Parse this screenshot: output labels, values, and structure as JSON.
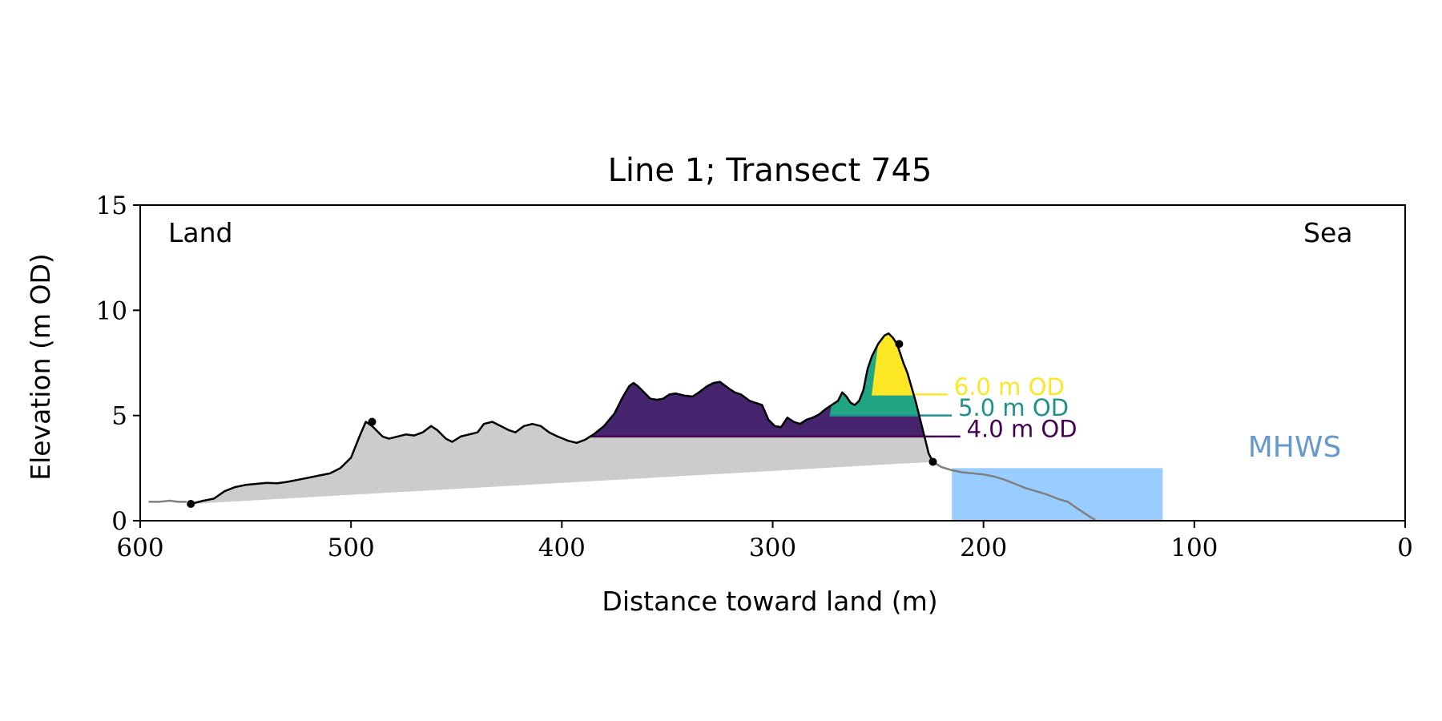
{
  "chart_data": {
    "type": "area",
    "title": "Line 1; Transect 745",
    "xlabel": "Distance toward land (m)",
    "ylabel": "Elevation (m OD)",
    "xlim": [
      600,
      0
    ],
    "ylim": [
      0,
      15
    ],
    "x_reversed": true,
    "xticks": [
      600,
      500,
      400,
      300,
      200,
      100,
      0
    ],
    "yticks": [
      0,
      5,
      10,
      15
    ],
    "grid": false,
    "side_labels": {
      "left": "Land",
      "right": "Sea"
    },
    "mhws_label": "MHWS",
    "colors": {
      "profile_line": "#000000",
      "seaward_line": "#808080",
      "below_baseline_fill": "#cccccc",
      "mhws_fill": "#99ccff",
      "mhws_text": "#6699cc",
      "level_4": "#440154",
      "level_5": "#21918c",
      "level_6": "#fde725",
      "fill_4": "#46246e"
    },
    "levels": [
      {
        "label": "4.0 m OD",
        "value": 4.0,
        "color": "#440154",
        "fill": "#46246e",
        "x_from": 387,
        "label_x": 208,
        "label_y": 4.4
      },
      {
        "label": "5.0 m OD",
        "value": 5.0,
        "color": "#21918c",
        "fill": "#21a685",
        "x_from": 273,
        "label_x": 212,
        "label_y": 5.4
      },
      {
        "label": "6.0 m OD",
        "value": 6.0,
        "color": "#fde725",
        "fill": "#fde725",
        "x_from": 253,
        "label_x": 214,
        "label_y": 6.4
      }
    ],
    "mhws": {
      "value": 2.5,
      "x_from": 215,
      "x_to": 115
    },
    "baseline_points": [
      [
        576,
        0.8
      ],
      [
        224,
        2.8
      ]
    ],
    "key_points": [
      [
        576,
        0.8
      ],
      [
        490,
        4.7
      ],
      [
        240,
        8.4
      ],
      [
        224,
        2.8
      ]
    ],
    "landward_series": {
      "name": "",
      "x": [
        596,
        591,
        586,
        582,
        578
      ],
      "y": [
        0.9,
        0.9,
        0.95,
        0.9,
        0.9
      ]
    },
    "profile_series": {
      "name": "",
      "x": [
        576,
        570,
        565,
        560,
        555,
        550,
        545,
        540,
        535,
        530,
        525,
        520,
        515,
        510,
        505,
        500,
        496,
        493,
        490,
        487,
        485,
        482,
        478,
        474,
        470,
        466,
        462,
        459,
        455,
        452,
        448,
        444,
        440,
        437,
        433,
        429,
        425,
        422,
        418,
        414,
        410,
        406,
        402,
        397,
        393,
        389,
        385,
        380,
        375,
        371,
        368,
        366,
        364,
        361,
        358,
        355,
        352,
        349,
        346,
        342,
        338,
        335,
        331,
        328,
        325,
        321,
        318,
        315,
        311,
        308,
        305,
        302,
        299,
        296,
        293,
        290,
        287,
        284,
        281,
        278,
        275,
        272,
        269,
        267,
        265,
        263,
        261,
        259,
        257,
        255,
        253,
        250,
        247,
        245,
        243,
        241,
        240,
        238,
        236,
        234,
        232,
        230,
        228,
        226,
        224
      ],
      "y": [
        0.8,
        0.95,
        1.05,
        1.4,
        1.6,
        1.7,
        1.75,
        1.8,
        1.78,
        1.85,
        1.95,
        2.05,
        2.15,
        2.25,
        2.5,
        3.0,
        4.0,
        4.7,
        4.5,
        4.2,
        4.0,
        3.9,
        4.0,
        4.1,
        4.05,
        4.2,
        4.5,
        4.3,
        3.9,
        3.75,
        4.0,
        4.1,
        4.2,
        4.6,
        4.7,
        4.5,
        4.3,
        4.2,
        4.5,
        4.6,
        4.5,
        4.2,
        4.0,
        3.8,
        3.7,
        3.85,
        4.1,
        4.5,
        5.1,
        5.9,
        6.4,
        6.55,
        6.4,
        6.1,
        5.8,
        5.75,
        5.8,
        6.0,
        6.05,
        5.95,
        5.9,
        6.1,
        6.4,
        6.55,
        6.6,
        6.3,
        6.1,
        6.0,
        5.7,
        5.6,
        5.5,
        4.8,
        4.5,
        4.45,
        4.9,
        4.7,
        4.6,
        4.8,
        4.9,
        5.05,
        5.3,
        5.5,
        5.7,
        6.1,
        5.9,
        5.6,
        5.5,
        5.7,
        6.2,
        7.2,
        7.8,
        8.4,
        8.8,
        8.9,
        8.7,
        8.4,
        8.1,
        7.5,
        7.0,
        6.3,
        5.6,
        4.8,
        4.0,
        3.2,
        2.8
      ]
    },
    "seaward_series": {
      "name": "",
      "x": [
        224,
        220,
        215,
        210,
        205,
        200,
        195,
        190,
        185,
        180,
        175,
        170,
        165,
        160,
        155,
        152,
        149,
        147
      ],
      "y": [
        2.8,
        2.55,
        2.4,
        2.3,
        2.25,
        2.2,
        2.1,
        1.95,
        1.75,
        1.55,
        1.4,
        1.25,
        1.05,
        0.9,
        0.55,
        0.35,
        0.15,
        0.05
      ]
    }
  }
}
